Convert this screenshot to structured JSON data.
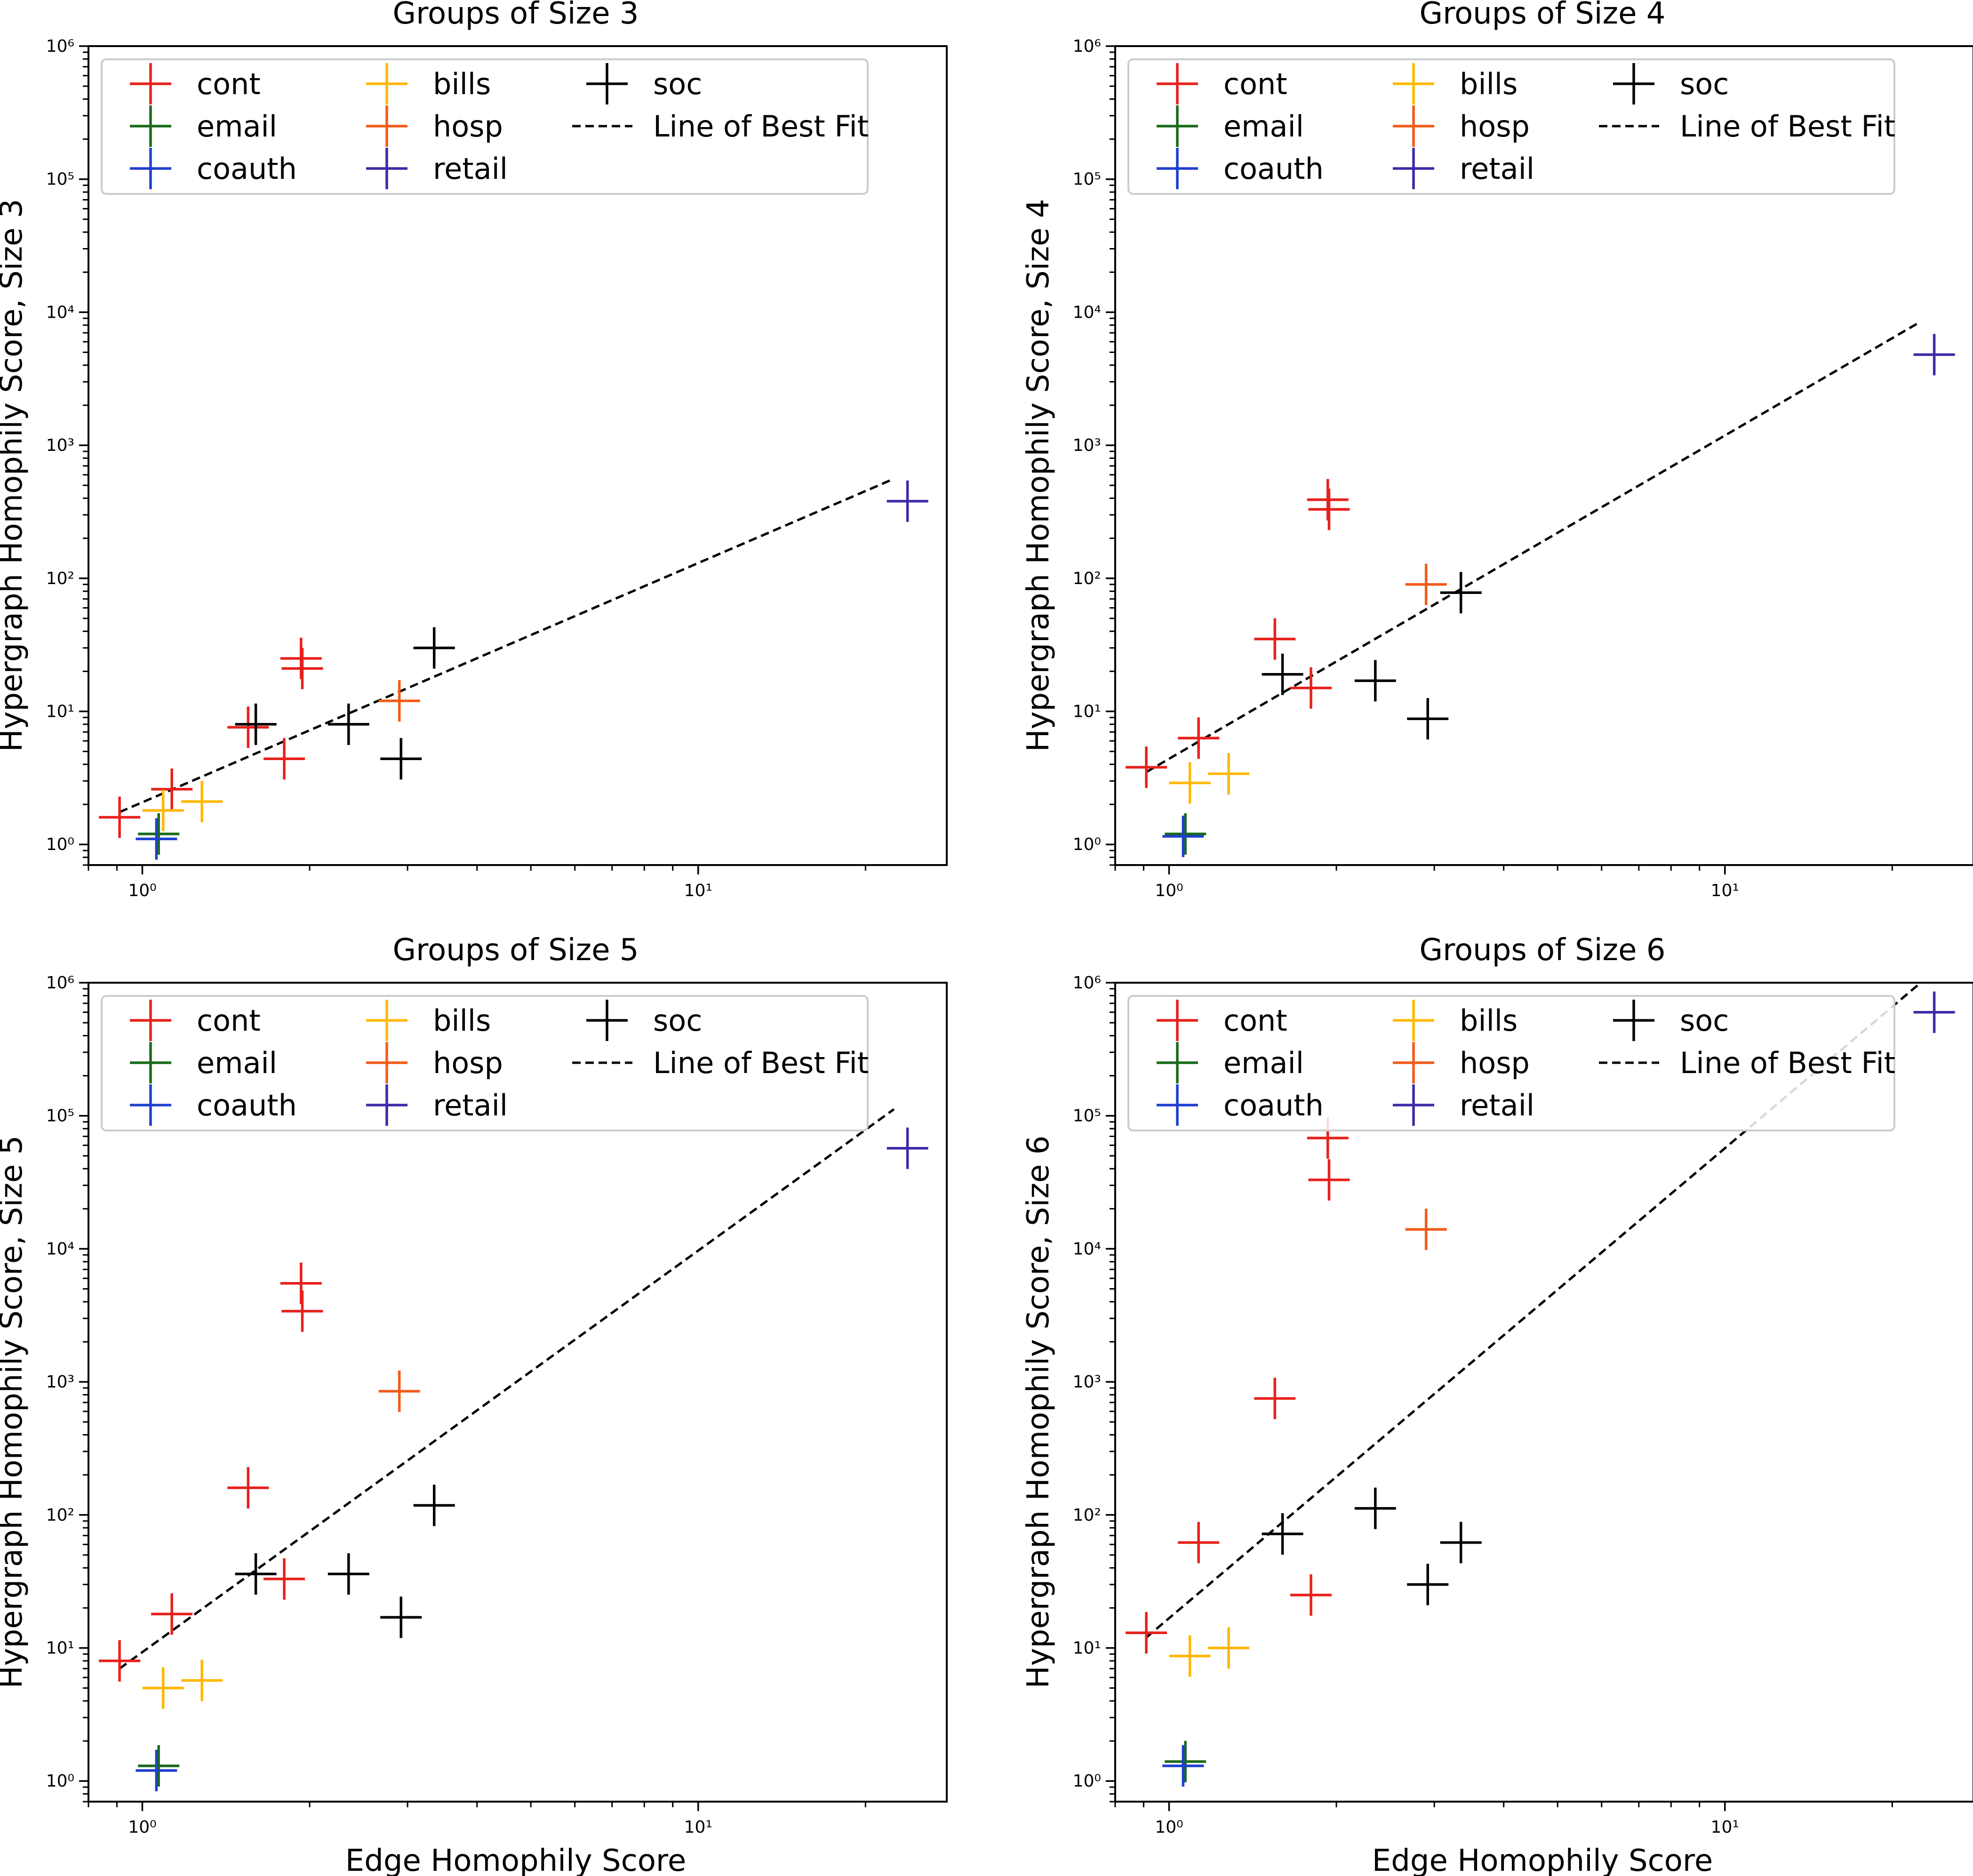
{
  "figure": {
    "xlabel": "Edge Homophily Score",
    "ylabel_prefix": "Hypergraph Homophily Score, Size"
  },
  "legend": [
    {
      "key": "cont",
      "label": "cont",
      "color": "#e8201b",
      "kind": "marker"
    },
    {
      "key": "email",
      "label": "email",
      "color": "#1a6b1a",
      "kind": "marker"
    },
    {
      "key": "coauth",
      "label": "coauth",
      "color": "#1f3fd0",
      "kind": "marker"
    },
    {
      "key": "bills",
      "label": "bills",
      "color": "#ffb800",
      "kind": "marker"
    },
    {
      "key": "hosp",
      "label": "hosp",
      "color": "#f25c19",
      "kind": "marker"
    },
    {
      "key": "retail",
      "label": "retail",
      "color": "#3d2aa8",
      "kind": "marker"
    },
    {
      "key": "soc",
      "label": "soc",
      "color": "#000000",
      "kind": "marker"
    },
    {
      "key": "fit",
      "label": "Line of Best Fit",
      "color": "#000000",
      "kind": "line"
    }
  ],
  "chart_data": [
    {
      "type": "scatter",
      "title": "Groups of Size 3",
      "xlabel": "",
      "ylabel": "Hypergraph Homophily Score, Size 3",
      "xscale": "log",
      "yscale": "log",
      "xlim": [
        0.8,
        28
      ],
      "ylim": [
        0.7,
        1000000
      ],
      "xticks": [
        {
          "value": 1,
          "label": "10⁰"
        },
        {
          "value": 10,
          "label": "10¹"
        }
      ],
      "yticks": [
        {
          "value": 1,
          "label": "10⁰"
        },
        {
          "value": 10,
          "label": "10¹"
        },
        {
          "value": 100,
          "label": "10²"
        },
        {
          "value": 1000,
          "label": "10³"
        },
        {
          "value": 10000,
          "label": "10⁴"
        },
        {
          "value": 100000,
          "label": "10⁵"
        },
        {
          "value": 1000000,
          "label": "10⁶"
        }
      ],
      "legend_position": "upper-left",
      "series": [
        {
          "name": "cont",
          "points": [
            [
              0.91,
              1.6
            ],
            [
              1.13,
              2.6
            ],
            [
              1.55,
              7.6
            ],
            [
              1.8,
              4.4
            ],
            [
              1.93,
              25
            ],
            [
              1.94,
              21
            ]
          ]
        },
        {
          "name": "email",
          "points": [
            [
              1.07,
              1.2
            ]
          ]
        },
        {
          "name": "coauth",
          "points": [
            [
              1.06,
              1.1
            ]
          ]
        },
        {
          "name": "bills",
          "points": [
            [
              1.09,
              1.8
            ],
            [
              1.28,
              2.1
            ]
          ]
        },
        {
          "name": "hosp",
          "points": [
            [
              2.9,
              12
            ]
          ]
        },
        {
          "name": "retail",
          "points": [
            [
              23.8,
              380
            ]
          ]
        },
        {
          "name": "soc",
          "points": [
            [
              1.6,
              8
            ],
            [
              2.35,
              8
            ],
            [
              2.92,
              4.4
            ],
            [
              3.35,
              30
            ]
          ]
        }
      ],
      "fit": {
        "from": [
          0.91,
          1.75
        ],
        "to": [
          22.5,
          560
        ]
      }
    },
    {
      "type": "scatter",
      "title": "Groups of Size 4",
      "xlabel": "",
      "ylabel": "Hypergraph Homophily Score, Size 4",
      "xscale": "log",
      "yscale": "log",
      "xlim": [
        0.8,
        28
      ],
      "ylim": [
        0.7,
        1000000
      ],
      "xticks": [
        {
          "value": 1,
          "label": "10⁰"
        },
        {
          "value": 10,
          "label": "10¹"
        }
      ],
      "yticks": [
        {
          "value": 1,
          "label": "10⁰"
        },
        {
          "value": 10,
          "label": "10¹"
        },
        {
          "value": 100,
          "label": "10²"
        },
        {
          "value": 1000,
          "label": "10³"
        },
        {
          "value": 10000,
          "label": "10⁴"
        },
        {
          "value": 100000,
          "label": "10⁵"
        },
        {
          "value": 1000000,
          "label": "10⁶"
        }
      ],
      "legend_position": "upper-left",
      "series": [
        {
          "name": "cont",
          "points": [
            [
              0.91,
              3.8
            ],
            [
              1.13,
              6.3
            ],
            [
              1.55,
              35
            ],
            [
              1.8,
              15
            ],
            [
              1.93,
              390
            ],
            [
              1.94,
              330
            ]
          ]
        },
        {
          "name": "email",
          "points": [
            [
              1.07,
              1.2
            ]
          ]
        },
        {
          "name": "coauth",
          "points": [
            [
              1.06,
              1.15
            ]
          ]
        },
        {
          "name": "bills",
          "points": [
            [
              1.09,
              2.9
            ],
            [
              1.28,
              3.4
            ]
          ]
        },
        {
          "name": "hosp",
          "points": [
            [
              2.9,
              90
            ]
          ]
        },
        {
          "name": "retail",
          "points": [
            [
              23.8,
              4800
            ]
          ]
        },
        {
          "name": "soc",
          "points": [
            [
              1.6,
              19
            ],
            [
              2.35,
              17
            ],
            [
              2.92,
              8.8
            ],
            [
              3.35,
              78
            ]
          ]
        }
      ],
      "fit": {
        "from": [
          0.91,
          3.5
        ],
        "to": [
          22.5,
          8500
        ]
      }
    },
    {
      "type": "scatter",
      "title": "Groups of Size 5",
      "xlabel": "Edge Homophily Score",
      "ylabel": "Hypergraph Homophily Score, Size 5",
      "xscale": "log",
      "yscale": "log",
      "xlim": [
        0.8,
        28
      ],
      "ylim": [
        0.7,
        1000000
      ],
      "xticks": [
        {
          "value": 1,
          "label": "10⁰"
        },
        {
          "value": 10,
          "label": "10¹"
        }
      ],
      "yticks": [
        {
          "value": 1,
          "label": "10⁰"
        },
        {
          "value": 10,
          "label": "10¹"
        },
        {
          "value": 100,
          "label": "10²"
        },
        {
          "value": 1000,
          "label": "10³"
        },
        {
          "value": 10000,
          "label": "10⁴"
        },
        {
          "value": 100000,
          "label": "10⁵"
        },
        {
          "value": 1000000,
          "label": "10⁶"
        }
      ],
      "legend_position": "upper-left",
      "series": [
        {
          "name": "cont",
          "points": [
            [
              0.91,
              8
            ],
            [
              1.13,
              18
            ],
            [
              1.55,
              160
            ],
            [
              1.8,
              33
            ],
            [
              1.93,
              5500
            ],
            [
              1.94,
              3400
            ]
          ]
        },
        {
          "name": "email",
          "points": [
            [
              1.07,
              1.3
            ]
          ]
        },
        {
          "name": "coauth",
          "points": [
            [
              1.06,
              1.2
            ]
          ]
        },
        {
          "name": "bills",
          "points": [
            [
              1.09,
              5
            ],
            [
              1.28,
              5.7
            ]
          ]
        },
        {
          "name": "hosp",
          "points": [
            [
              2.9,
              850
            ]
          ]
        },
        {
          "name": "retail",
          "points": [
            [
              23.8,
              57000
            ]
          ]
        },
        {
          "name": "soc",
          "points": [
            [
              1.6,
              36
            ],
            [
              2.35,
              36
            ],
            [
              2.92,
              17
            ],
            [
              3.35,
              118
            ]
          ]
        }
      ],
      "fit": {
        "from": [
          0.91,
          7
        ],
        "to": [
          22.5,
          112000
        ]
      }
    },
    {
      "type": "scatter",
      "title": "Groups of Size 6",
      "xlabel": "Edge Homophily Score",
      "ylabel": "Hypergraph Homophily Score, Size 6",
      "xscale": "log",
      "yscale": "log",
      "xlim": [
        0.8,
        28
      ],
      "ylim": [
        0.7,
        1000000
      ],
      "xticks": [
        {
          "value": 1,
          "label": "10⁰"
        },
        {
          "value": 10,
          "label": "10¹"
        }
      ],
      "yticks": [
        {
          "value": 1,
          "label": "10⁰"
        },
        {
          "value": 10,
          "label": "10¹"
        },
        {
          "value": 100,
          "label": "10²"
        },
        {
          "value": 1000,
          "label": "10³"
        },
        {
          "value": 10000,
          "label": "10⁴"
        },
        {
          "value": 100000,
          "label": "10⁵"
        },
        {
          "value": 1000000,
          "label": "10⁶"
        }
      ],
      "legend_position": "upper-left",
      "series": [
        {
          "name": "cont",
          "points": [
            [
              0.91,
              13
            ],
            [
              1.13,
              62
            ],
            [
              1.55,
              750
            ],
            [
              1.8,
              25
            ],
            [
              1.93,
              68000
            ],
            [
              1.94,
              33000
            ]
          ]
        },
        {
          "name": "email",
          "points": [
            [
              1.07,
              1.4
            ]
          ]
        },
        {
          "name": "coauth",
          "points": [
            [
              1.06,
              1.3
            ]
          ]
        },
        {
          "name": "bills",
          "points": [
            [
              1.09,
              8.7
            ],
            [
              1.28,
              10
            ]
          ]
        },
        {
          "name": "hosp",
          "points": [
            [
              2.9,
              14000
            ]
          ]
        },
        {
          "name": "retail",
          "points": [
            [
              23.8,
              600000
            ]
          ]
        },
        {
          "name": "soc",
          "points": [
            [
              1.6,
              72
            ],
            [
              2.35,
              112
            ],
            [
              2.92,
              30
            ],
            [
              3.35,
              62
            ]
          ]
        }
      ],
      "fit": {
        "from": [
          0.91,
          12
        ],
        "to": [
          22.5,
          1000000
        ]
      }
    }
  ]
}
